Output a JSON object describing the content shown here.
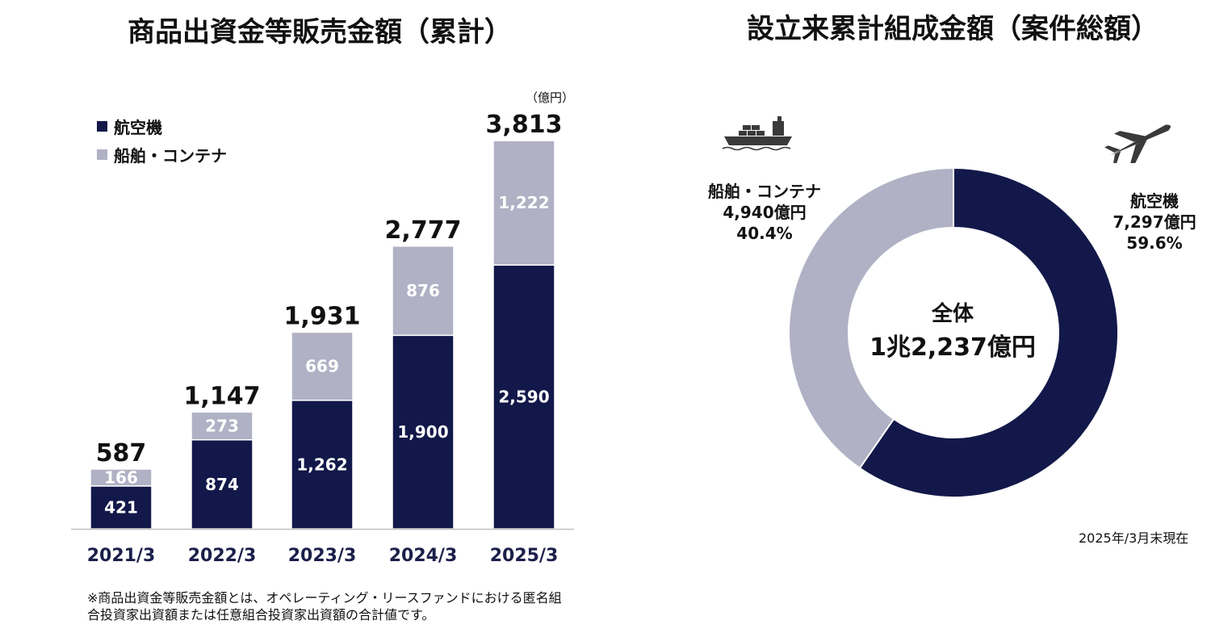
{
  "bar_chart": {
    "title": "商品出資金等販売金額（累計）",
    "unit": "（億円）",
    "note": "※商品出資金等販売金額とは、オペレーティング・リースファンドにおける匿名組合投資家出資額または任意組合投資家出資額の合計値です。",
    "colors": {
      "aircraft": "#121849",
      "ship": "#b0b1c4"
    }
  },
  "donut_chart": {
    "title": "設立来累計組成金額（案件総額）",
    "center_line1": "全体",
    "center_line2": "1兆2,237億円",
    "ship_label": {
      "name": "船舶・コンテナ",
      "value": "4,940億円",
      "pct": "40.4%"
    },
    "air_label": {
      "name": "航空機",
      "value": "7,297億円",
      "pct": "59.6%"
    },
    "as_of": "2025年/3月末現在",
    "icons": [
      "container-ship-icon",
      "airplane-icon"
    ]
  },
  "chart_data": [
    {
      "type": "bar",
      "stacked": true,
      "title": "商品出資金等販売金額（累計）",
      "categories": [
        "2021/3",
        "2022/3",
        "2023/3",
        "2024/3",
        "2025/3"
      ],
      "series": [
        {
          "name": "航空機",
          "values": [
            421,
            874,
            1262,
            1900,
            2590
          ],
          "labels": [
            "421",
            "874",
            "1,262",
            "1,900",
            "2,590"
          ],
          "color": "#121849"
        },
        {
          "name": "船舶・コンテナ",
          "values": [
            166,
            273,
            669,
            876,
            1222
          ],
          "labels": [
            "166",
            "273",
            "669",
            "876",
            "1,222"
          ],
          "color": "#b0b1c4"
        }
      ],
      "totals": [
        587,
        1147,
        1931,
        2777,
        3813
      ],
      "total_labels": [
        "587",
        "1,147",
        "1,931",
        "2,777",
        "3,813"
      ],
      "ylim": [
        0,
        3813
      ],
      "grid": false,
      "legend": "top-left"
    },
    {
      "type": "pie",
      "donut": true,
      "title": "設立来累計組成金額（案件総額）",
      "labels": [
        "航空機",
        "船舶・コンテナ"
      ],
      "values": [
        7297,
        4940
      ],
      "percent": [
        59.6,
        40.4
      ],
      "colors": [
        "#121849",
        "#b0b1c4"
      ],
      "total": 12237
    }
  ]
}
